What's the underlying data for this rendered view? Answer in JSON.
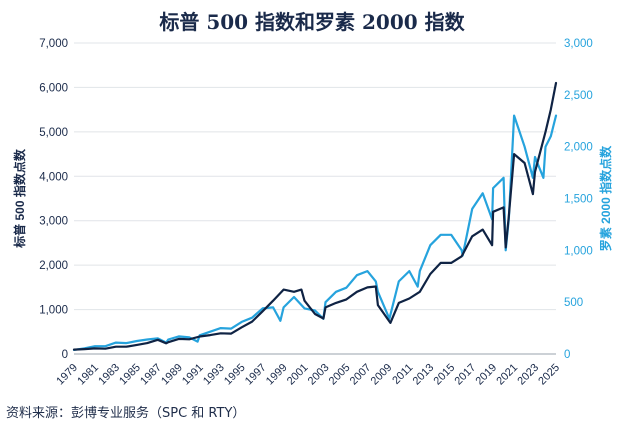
{
  "chart_data": {
    "type": "line",
    "title": "标普 500 指数和罗素 2000 指数",
    "ylabel_left": "标普 500 指数点数",
    "ylabel_right": "罗素 2000 指数点数",
    "ylim_left": [
      0,
      7000
    ],
    "ylim_right": [
      0,
      3000
    ],
    "y_ticks_left": [
      "0",
      "1,000",
      "2,000",
      "3,000",
      "4,000",
      "5,000",
      "6,000",
      "7,000"
    ],
    "y_ticks_right": [
      "0",
      "500",
      "1,000",
      "1,500",
      "2,000",
      "2,500",
      "3,000"
    ],
    "x_ticks": [
      "1979",
      "1981",
      "1983",
      "1985",
      "1987",
      "1989",
      "1991",
      "1993",
      "1995",
      "1997",
      "1999",
      "2001",
      "2003",
      "2005",
      "2007",
      "2009",
      "2011",
      "2013",
      "2015",
      "2017",
      "2019",
      "2021",
      "2023",
      "2025"
    ],
    "xlim": [
      1979,
      2025
    ],
    "grid": true,
    "legend": "none",
    "series": [
      {
        "axis": "left",
        "color": "#0f2344",
        "x": [
          1979,
          1980,
          1981,
          1982,
          1983,
          1984,
          1985,
          1986,
          1987,
          1987.8,
          1988,
          1989,
          1990,
          1991,
          1992,
          1993,
          1994,
          1995,
          1996,
          1997,
          1998,
          1999,
          2000,
          2000.7,
          2001,
          2002,
          2002.8,
          2003,
          2004,
          2005,
          2006,
          2007,
          2007.8,
          2008,
          2008.9,
          2009.2,
          2010,
          2011,
          2012,
          2013,
          2014,
          2015,
          2016,
          2017,
          2018,
          2018.9,
          2019,
          2020,
          2020.2,
          2020.5,
          2021,
          2022,
          2022.8,
          2023,
          2024,
          2024.5,
          2025
        ],
        "values": [
          100,
          110,
          125,
          120,
          165,
          165,
          205,
          245,
          320,
          240,
          265,
          340,
          330,
          395,
          425,
          465,
          460,
          600,
          730,
          960,
          1200,
          1450,
          1400,
          1450,
          1200,
          900,
          800,
          1050,
          1150,
          1230,
          1400,
          1500,
          1520,
          1100,
          800,
          700,
          1150,
          1250,
          1400,
          1800,
          2050,
          2050,
          2200,
          2650,
          2800,
          2450,
          3200,
          3300,
          2400,
          3100,
          4500,
          4300,
          3600,
          4100,
          5000,
          5500,
          6100
        ]
      },
      {
        "axis": "right",
        "color": "#26a3dd",
        "x": [
          1979,
          1980,
          1981,
          1982,
          1983,
          1984,
          1985,
          1986,
          1987,
          1987.8,
          1988,
          1989,
          1990,
          1990.8,
          1991,
          1992,
          1993,
          1994,
          1995,
          1996,
          1997,
          1998,
          1998.7,
          1999,
          2000,
          2001,
          2002,
          2002.8,
          2003,
          2004,
          2005,
          2006,
          2007,
          2007.8,
          2008,
          2009.1,
          2010,
          2011,
          2011.8,
          2012,
          2013,
          2014,
          2015,
          2016,
          2016.1,
          2017,
          2018,
          2018.9,
          2019,
          2020,
          2020.2,
          2020.5,
          2021,
          2022,
          2022.8,
          2023,
          2023.8,
          2024,
          2024.5,
          2025
        ],
        "values": [
          40,
          55,
          75,
          75,
          110,
          105,
          125,
          140,
          150,
          110,
          140,
          170,
          160,
          120,
          180,
          215,
          250,
          245,
          310,
          350,
          440,
          450,
          320,
          450,
          550,
          440,
          420,
          340,
          500,
          600,
          640,
          760,
          800,
          700,
          600,
          340,
          700,
          800,
          650,
          800,
          1050,
          1150,
          1150,
          1000,
          950,
          1400,
          1550,
          1300,
          1600,
          1700,
          1000,
          1300,
          2300,
          2000,
          1700,
          1900,
          1700,
          2000,
          2100,
          2300
        ]
      }
    ]
  },
  "source_note": "资料来源：彭博专业服务（SPC 和 RTY）"
}
